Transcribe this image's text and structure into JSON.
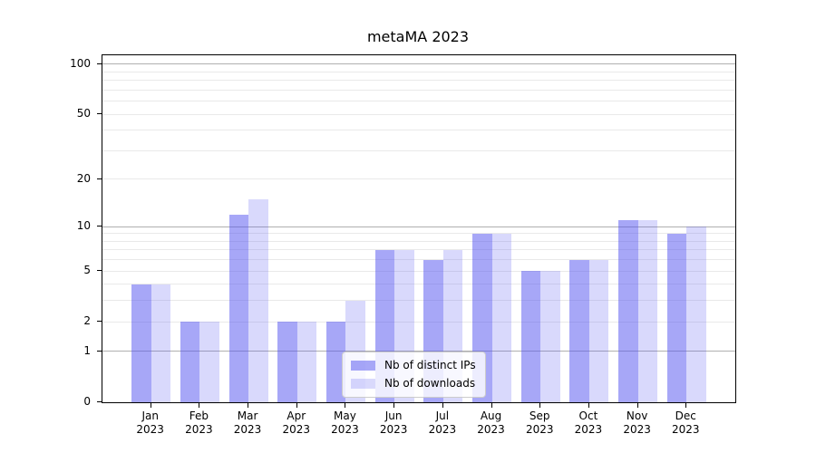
{
  "chart_data": {
    "type": "bar",
    "title": "metaMA 2023",
    "x_categories": [
      {
        "month": "Jan",
        "year": "2023"
      },
      {
        "month": "Feb",
        "year": "2023"
      },
      {
        "month": "Mar",
        "year": "2023"
      },
      {
        "month": "Apr",
        "year": "2023"
      },
      {
        "month": "May",
        "year": "2023"
      },
      {
        "month": "Jun",
        "year": "2023"
      },
      {
        "month": "Jul",
        "year": "2023"
      },
      {
        "month": "Aug",
        "year": "2023"
      },
      {
        "month": "Sep",
        "year": "2023"
      },
      {
        "month": "Oct",
        "year": "2023"
      },
      {
        "month": "Nov",
        "year": "2023"
      },
      {
        "month": "Dec",
        "year": "2023"
      }
    ],
    "series": [
      {
        "name": "Nb of distinct IPs",
        "color": "rgba(80,80,240,0.5)",
        "values": [
          4,
          2,
          12,
          2,
          2,
          7,
          6,
          9,
          5,
          6,
          11,
          9
        ]
      },
      {
        "name": "Nb of downloads",
        "color": "rgba(80,80,240,0.22)",
        "values": [
          4,
          2,
          15,
          2,
          3,
          7,
          7,
          9,
          5,
          6,
          11,
          10
        ]
      }
    ],
    "yscale": "log1p",
    "ylim": [
      0,
      113
    ],
    "yticks": [
      0,
      1,
      2,
      5,
      10,
      20,
      50,
      100
    ],
    "gridlines": {
      "major": [
        1,
        10,
        100
      ],
      "minor": [
        2,
        3,
        4,
        5,
        6,
        7,
        8,
        9,
        20,
        30,
        40,
        50,
        60,
        70,
        80,
        90
      ],
      "major_color": "#b0b0b0",
      "minor_color": "#e9e9e9"
    },
    "legend": {
      "position": "inside-bottom-center",
      "entries": [
        "Nb of distinct IPs",
        "Nb of downloads"
      ]
    },
    "axis_color": "#000000",
    "background_color": "#ffffff"
  }
}
